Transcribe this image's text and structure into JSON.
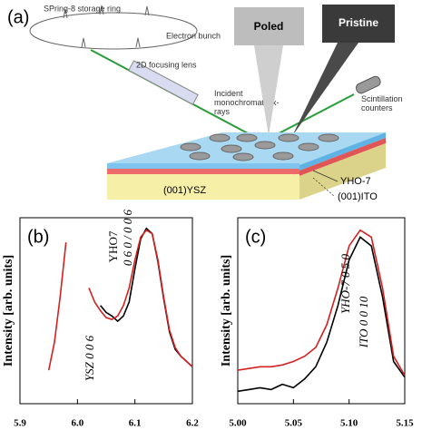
{
  "diagram": {
    "panel_label": "(a)",
    "ring_label": "SPring-8 storage ring",
    "bunch_label": "Electron bunch",
    "lens_label": "2D focusing lens",
    "beam_label": "Incident monochromatic x-rays",
    "poled_label": "Poled",
    "pristine_label": "Pristine",
    "counter_label": "Scintillation counters",
    "layer_top_label": "YHO-7",
    "layer_substrate_label": "(001)YSZ",
    "layer_mid_label": "(001)ITO"
  },
  "chart_data": [
    {
      "type": "line",
      "panel_label": "(b)",
      "ylabel": "Intensity [arb. units]",
      "xlim": [
        5.9,
        6.2
      ],
      "ylim": [
        0,
        100
      ],
      "xticks": [
        5.9,
        {
          "value": 6,
          "label": "6.0"
        },
        6.1,
        6.2
      ],
      "annotations": [
        "YSZ  0 0 6",
        "YHO7",
        "0 6 0 / 0 0 6"
      ],
      "series": [
        {
          "color": "#000000",
          "x": [
            6.04,
            6.05,
            6.06,
            6.07,
            6.08,
            6.09,
            6.1,
            6.11,
            6.12,
            6.13,
            6.14,
            6.15,
            6.16,
            6.17,
            6.18,
            6.19,
            6.2
          ],
          "values": [
            53,
            49,
            47,
            44,
            47,
            55,
            74,
            91,
            97,
            94,
            78,
            57,
            38,
            28,
            24,
            21,
            18
          ]
        },
        {
          "color": "#d42020",
          "x": [
            5.95,
            5.96,
            5.97,
            5.98,
            null,
            6.02,
            6.03,
            6.04,
            6.05,
            6.06,
            6.07,
            6.08,
            6.09,
            6.1,
            6.11,
            6.12,
            6.13,
            6.14,
            6.15,
            6.16,
            6.17,
            6.18,
            6.19,
            6.2
          ],
          "values": [
            16,
            32,
            58,
            89,
            null,
            63,
            55,
            50,
            46,
            45,
            47,
            53,
            63,
            79,
            92,
            96,
            94,
            79,
            58,
            39,
            29,
            24,
            21,
            18
          ]
        }
      ]
    },
    {
      "type": "line",
      "panel_label": "(c)",
      "ylabel": "Intensity [arb. units]",
      "xlim": [
        5.0,
        5.15
      ],
      "ylim": [
        0,
        100
      ],
      "xticks": [
        {
          "value": 5,
          "label": "5.00"
        },
        5.05,
        {
          "value": 5.1,
          "label": "5.10"
        },
        5.15
      ],
      "annotations": [
        "YHO-7  0 5 0",
        "ITO  0 0 10"
      ],
      "series": [
        {
          "color": "#000000",
          "x": [
            5.0,
            5.01,
            5.02,
            5.03,
            5.04,
            5.05,
            5.06,
            5.07,
            5.08,
            5.09,
            5.1,
            5.11,
            5.12,
            5.13,
            5.14,
            5.15
          ],
          "values": [
            4,
            5,
            6,
            5,
            8,
            6,
            11,
            18,
            32,
            53,
            79,
            92,
            87,
            58,
            21,
            12
          ]
        },
        {
          "color": "#d42020",
          "x": [
            5.0,
            5.01,
            5.02,
            5.03,
            5.04,
            5.05,
            5.06,
            5.07,
            5.08,
            5.09,
            5.1,
            5.11,
            5.12,
            5.13,
            5.14,
            5.15
          ],
          "values": [
            16,
            17,
            18,
            18,
            19,
            21,
            24,
            29,
            42,
            63,
            87,
            96,
            92,
            63,
            24,
            13
          ]
        }
      ]
    }
  ]
}
